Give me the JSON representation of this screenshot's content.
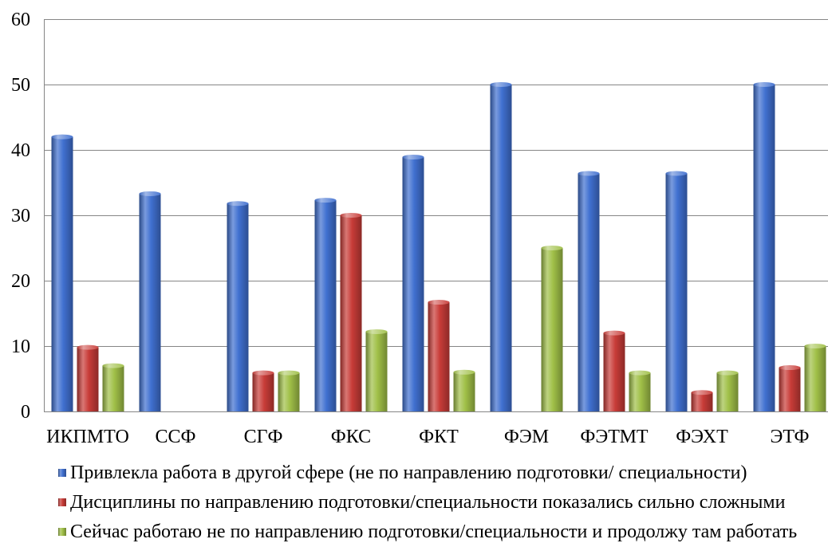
{
  "chart_data": {
    "type": "bar",
    "categories": [
      "ИКПМТО",
      "ССФ",
      "СГФ",
      "ФКС",
      "ФКТ",
      "ФЭМ",
      "ФЭТМТ",
      "ФЭХТ",
      "ЭТФ"
    ],
    "series": [
      {
        "name": "Привлекла работа в другой сфере (не по направлению подготовки/ специальности)",
        "color": "#4070D0",
        "values": [
          42,
          33.3,
          31.8,
          32.3,
          38.9,
          50,
          36.4,
          36.4,
          50
        ]
      },
      {
        "name": "Дисциплины по направлению подготовки/специальности показались сильно сложными",
        "color": "#C83C38",
        "values": [
          9.8,
          0,
          5.9,
          30,
          16.7,
          0,
          12,
          2.9,
          6.7
        ]
      },
      {
        "name": "Сейчас работаю не по направлению подготовки/специальности и продолжу там работать",
        "color": "#A0C048",
        "values": [
          7,
          0,
          5.9,
          12.2,
          6,
          25,
          5.9,
          5.9,
          10
        ]
      }
    ],
    "ylim": [
      0,
      60
    ],
    "yticks": [
      0,
      10,
      20,
      30,
      40,
      50,
      60
    ],
    "grid": true,
    "legend_position": "bottom",
    "gridline_color": "#868686"
  }
}
